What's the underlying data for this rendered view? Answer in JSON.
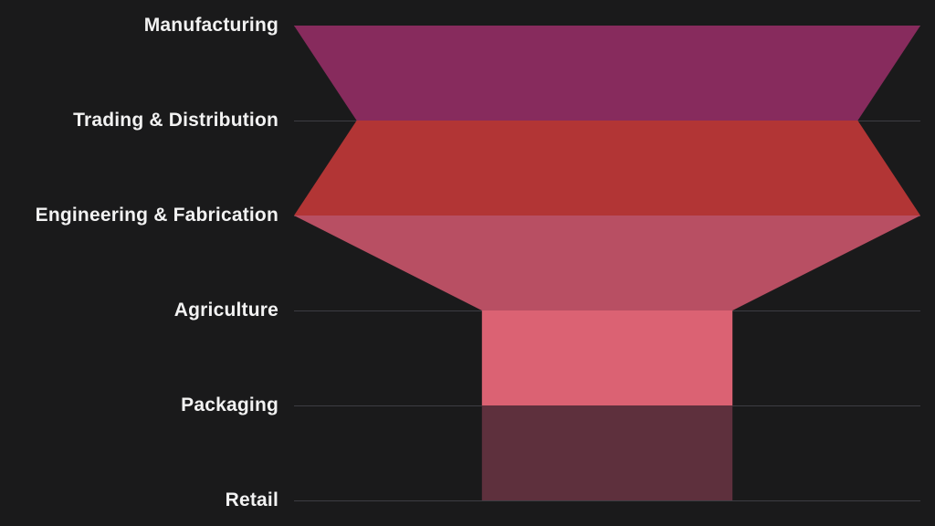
{
  "chart_data": {
    "type": "funnel",
    "title": "",
    "orientation": "vertical, apex-free funnel with labels on left",
    "stages": [
      "Manufacturing",
      "Trading & Distribution",
      "Engineering & Fabrication",
      "Agriculture",
      "Packaging",
      "Retail"
    ],
    "values_pct_of_max": [
      100,
      80,
      100,
      40,
      40,
      40
    ],
    "note": "No numeric data labels are rendered; values estimated from band widths relative to the widest band",
    "segment_colors": [
      "#872B5D",
      "#B23535",
      "#B84F63",
      "#DB6273",
      "#5E303D"
    ],
    "grid": "horizontal gridline at each stage row",
    "legend": "none"
  },
  "colors": {
    "background": "#1A1A1B",
    "gridline": "#3D3D43",
    "label_text": "#F2F2F2"
  }
}
